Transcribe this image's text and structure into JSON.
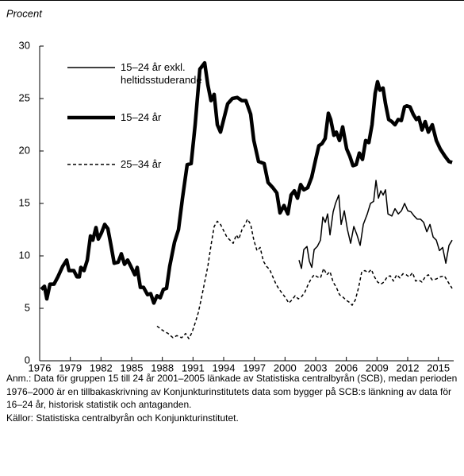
{
  "chart_data": {
    "type": "line",
    "ylabel": "Procent",
    "xlim": [
      1976,
      2016.5
    ],
    "xticks": [
      1976,
      1979,
      1982,
      1985,
      1988,
      1991,
      1994,
      1997,
      2000,
      2003,
      2006,
      2009,
      2012,
      2015
    ],
    "ylim": [
      0,
      30
    ],
    "yticks": [
      0,
      5,
      10,
      15,
      20,
      25,
      30
    ],
    "grid": false,
    "legend": "upper left",
    "series": [
      {
        "name": "15–24 år exkl. heltidsstuderande",
        "color": "#000000",
        "linestyle": "solid",
        "linewidth": 1.5,
        "x": [
          2001.37,
          2001.61,
          2001.84,
          2002.15,
          2002.38,
          2002.62,
          2002.85,
          2003.16,
          2003.47,
          2003.7,
          2003.94,
          2004.17,
          2004.4,
          2004.71,
          2004.94,
          2005.26,
          2005.49,
          2005.8,
          2006.11,
          2006.42,
          2006.73,
          2007.04,
          2007.35,
          2007.66,
          2008.05,
          2008.36,
          2008.67,
          2008.9,
          2009.14,
          2009.37,
          2009.6,
          2009.83,
          2010.07,
          2010.45,
          2010.76,
          2011.08,
          2011.39,
          2011.7,
          2012.01,
          2012.32,
          2012.63,
          2012.94,
          2013.25,
          2013.56,
          2013.87,
          2014.18,
          2014.49,
          2014.8,
          2015.11,
          2015.42,
          2015.73,
          2016.04,
          2016.35
        ],
        "values": [
          9.6,
          8.8,
          10.6,
          10.9,
          9.5,
          8.9,
          10.6,
          10.9,
          11.5,
          13.7,
          13.2,
          14.0,
          12.0,
          14.2,
          15.0,
          15.8,
          13.0,
          14.3,
          12.5,
          11.2,
          12.8,
          12.0,
          11.0,
          13.0,
          14.0,
          15.0,
          15.2,
          17.2,
          15.5,
          16.2,
          15.8,
          16.3,
          14.0,
          13.8,
          14.5,
          14.0,
          14.3,
          15.0,
          14.3,
          14.2,
          13.8,
          13.5,
          13.5,
          13.2,
          12.3,
          13.0,
          11.8,
          11.5,
          10.5,
          10.8,
          9.3,
          11.0,
          11.5
        ]
      },
      {
        "name": "15–24 år",
        "color": "#000000",
        "linestyle": "solid",
        "linewidth": 4.5,
        "x": [
          1976.16,
          1976.47,
          1976.7,
          1977.01,
          1977.4,
          1977.78,
          1978.25,
          1978.64,
          1978.87,
          1979.34,
          1979.65,
          1979.88,
          1980.03,
          1980.34,
          1980.66,
          1980.97,
          1981.2,
          1981.51,
          1981.74,
          1982.05,
          1982.36,
          1982.67,
          1982.98,
          1983.29,
          1983.68,
          1983.99,
          1984.3,
          1984.61,
          1984.92,
          1985.31,
          1985.54,
          1985.85,
          1986.16,
          1986.55,
          1986.86,
          1987.17,
          1987.48,
          1987.79,
          1988.1,
          1988.41,
          1988.72,
          1989.19,
          1989.58,
          1989.97,
          1990.43,
          1990.82,
          1991.21,
          1991.67,
          1992.14,
          1992.45,
          1992.76,
          1993.07,
          1993.38,
          1993.69,
          1994.0,
          1994.39,
          1994.85,
          1995.32,
          1995.78,
          1996.17,
          1996.64,
          1996.95,
          1997.41,
          1997.96,
          1998.34,
          1998.81,
          1999.2,
          1999.51,
          1999.9,
          2000.28,
          2000.59,
          2000.91,
          2001.22,
          2001.53,
          2001.84,
          2002.22,
          2002.61,
          2003.0,
          2003.31,
          2003.62,
          2003.93,
          2004.24,
          2004.47,
          2004.78,
          2005.02,
          2005.33,
          2005.64,
          2006.03,
          2006.34,
          2006.65,
          2006.96,
          2007.27,
          2007.58,
          2007.89,
          2008.2,
          2008.51,
          2008.82,
          2009.05,
          2009.28,
          2009.59,
          2009.83,
          2010.14,
          2010.45,
          2010.76,
          2011.07,
          2011.38,
          2011.69,
          2011.92,
          2012.23,
          2012.54,
          2012.85,
          2013.09,
          2013.4,
          2013.71,
          2014.02,
          2014.41,
          2014.8,
          2015.18,
          2015.65,
          2016.04,
          2016.35
        ],
        "values": [
          6.8,
          7.1,
          5.9,
          7.3,
          7.3,
          8.0,
          9.0,
          9.6,
          8.6,
          8.6,
          8.0,
          8.0,
          8.9,
          8.6,
          9.6,
          11.9,
          11.5,
          12.7,
          11.6,
          12.2,
          13.0,
          12.6,
          11.0,
          9.3,
          9.4,
          10.2,
          9.2,
          9.6,
          9.0,
          8.2,
          8.9,
          7.0,
          7.0,
          6.3,
          6.4,
          5.5,
          6.2,
          6.0,
          6.8,
          6.9,
          9.0,
          11.3,
          12.5,
          15.5,
          18.7,
          18.8,
          22.5,
          27.8,
          28.4,
          26.3,
          24.8,
          25.4,
          22.5,
          21.8,
          23.0,
          24.5,
          25.0,
          25.1,
          24.8,
          24.8,
          23.5,
          21.0,
          19.0,
          18.8,
          17.0,
          16.5,
          16.0,
          14.1,
          14.8,
          14.0,
          15.8,
          16.2,
          15.5,
          16.8,
          16.3,
          16.5,
          17.5,
          19.2,
          20.5,
          20.7,
          21.2,
          23.6,
          23.0,
          21.5,
          21.8,
          21.0,
          22.3,
          20.2,
          19.5,
          18.6,
          18.7,
          19.8,
          19.2,
          21.0,
          20.8,
          22.5,
          25.5,
          26.6,
          25.8,
          26.0,
          24.5,
          23.0,
          22.8,
          22.5,
          23.0,
          22.9,
          24.2,
          24.3,
          24.2,
          23.5,
          23.0,
          23.2,
          22.0,
          22.8,
          21.8,
          22.5,
          21.0,
          20.2,
          19.5,
          19.0,
          18.9
        ]
      },
      {
        "name": "25–34 år",
        "color": "#000000",
        "linestyle": "dashed",
        "linewidth": 1.5,
        "x": [
          1987.48,
          1988.03,
          1988.57,
          1989.04,
          1989.42,
          1989.89,
          1990.28,
          1990.59,
          1990.9,
          1991.21,
          1991.52,
          1991.83,
          1992.14,
          1992.45,
          1992.76,
          1993.07,
          1993.38,
          1993.69,
          1994.0,
          1994.31,
          1994.62,
          1994.93,
          1995.24,
          1995.48,
          1995.79,
          1996.1,
          1996.33,
          1996.64,
          1996.95,
          1997.26,
          1997.57,
          1997.88,
          1998.19,
          1998.5,
          1998.81,
          1999.12,
          1999.44,
          1999.75,
          2000.06,
          2000.37,
          2000.68,
          2000.99,
          2001.3,
          2001.61,
          2001.92,
          2002.23,
          2002.54,
          2002.85,
          2003.16,
          2003.47,
          2003.78,
          2004.09,
          2004.4,
          2004.71,
          2005.02,
          2005.33,
          2005.64,
          2005.95,
          2006.26,
          2006.57,
          2006.88,
          2007.2,
          2007.51,
          2007.82,
          2008.13,
          2008.44,
          2008.75,
          2009.06,
          2009.37,
          2009.68,
          2009.99,
          2010.3,
          2010.61,
          2010.92,
          2011.23,
          2011.54,
          2011.85,
          2012.16,
          2012.47,
          2012.78,
          2013.09,
          2013.4,
          2013.71,
          2014.02,
          2014.41,
          2014.8,
          2015.19,
          2015.58,
          2015.96,
          2016.35
        ],
        "values": [
          3.3,
          2.9,
          2.6,
          2.2,
          2.4,
          2.2,
          2.6,
          2.1,
          2.7,
          3.6,
          4.6,
          6.0,
          7.5,
          9.0,
          11.0,
          12.8,
          13.3,
          13.0,
          12.4,
          11.8,
          11.5,
          11.2,
          12.0,
          11.6,
          12.5,
          13.0,
          13.5,
          13.0,
          11.5,
          10.5,
          10.8,
          9.5,
          9.0,
          8.7,
          8.0,
          7.3,
          6.8,
          6.4,
          6.0,
          5.5,
          5.8,
          6.2,
          5.9,
          6.1,
          6.5,
          7.2,
          7.8,
          8.2,
          8.0,
          7.9,
          8.8,
          8.2,
          8.5,
          7.5,
          7.0,
          6.3,
          6.1,
          5.8,
          5.6,
          5.3,
          5.8,
          7.0,
          8.5,
          8.6,
          8.4,
          8.7,
          8.0,
          7.5,
          7.3,
          7.5,
          8.0,
          8.1,
          7.6,
          8.2,
          7.9,
          8.3,
          8.2,
          8.0,
          8.4,
          7.6,
          7.7,
          7.5,
          8.0,
          8.2,
          7.7,
          7.8,
          8.0,
          8.1,
          7.5,
          6.9
        ]
      }
    ],
    "note": "Anm.: Data för gruppen 15 till 24 år 2001–2005 länkade av Statistiska centralbyrån (SCB), medan perioden 1976–2000 är en tillbakaskrivning av Konjunkturinstitutets data som bygger på SCB:s länkning av data för 16–24 år, historisk statistik och antaganden.",
    "source": "Källor: Statistiska centralbyrån och Konjunkturinstitutet."
  }
}
